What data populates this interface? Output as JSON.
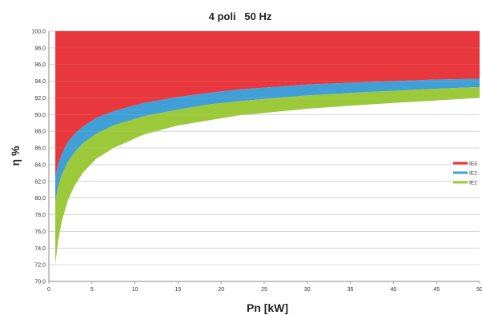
{
  "chart_data": {
    "type": "area",
    "title": "4 poli   50 Hz",
    "xlabel": "Pn [kW]",
    "ylabel": "η %",
    "xlim": [
      0,
      50
    ],
    "ylim": [
      70,
      100
    ],
    "x_ticks": [
      "0",
      "5",
      "10",
      "15",
      "20",
      "25",
      "30",
      "35",
      "40",
      "45",
      "50"
    ],
    "y_ticks": [
      "70,0",
      "72,0",
      "74,0",
      "76,0",
      "78,0",
      "80,0",
      "82,0",
      "84,0",
      "86,0",
      "88,0",
      "90,0",
      "92,0",
      "94,0",
      "96,0",
      "98,0",
      "100,0"
    ],
    "grid": true,
    "legend_position": "right",
    "x": [
      0.75,
      1.1,
      1.5,
      2.2,
      3,
      4,
      5.5,
      7.5,
      11,
      15,
      18.5,
      22,
      30,
      37,
      45,
      50
    ],
    "series": [
      {
        "name": "IE3",
        "color": "#e8383d",
        "values": [
          82.5,
          84.1,
          85.3,
          86.7,
          87.7,
          88.6,
          89.6,
          90.4,
          91.4,
          92.1,
          92.6,
          93.0,
          93.6,
          93.9,
          94.2,
          94.3
        ]
      },
      {
        "name": "IE2",
        "color": "#3f9fd6",
        "values": [
          79.6,
          81.4,
          82.8,
          84.3,
          85.5,
          86.6,
          87.7,
          88.7,
          89.8,
          90.6,
          91.2,
          91.6,
          92.3,
          92.7,
          93.1,
          93.3
        ]
      },
      {
        "name": "IE1",
        "color": "#9bc93a",
        "values": [
          72.1,
          75.0,
          77.2,
          79.7,
          81.5,
          83.1,
          84.7,
          86.0,
          87.6,
          88.7,
          89.3,
          89.9,
          90.7,
          91.2,
          91.7,
          92.0
        ]
      }
    ]
  }
}
